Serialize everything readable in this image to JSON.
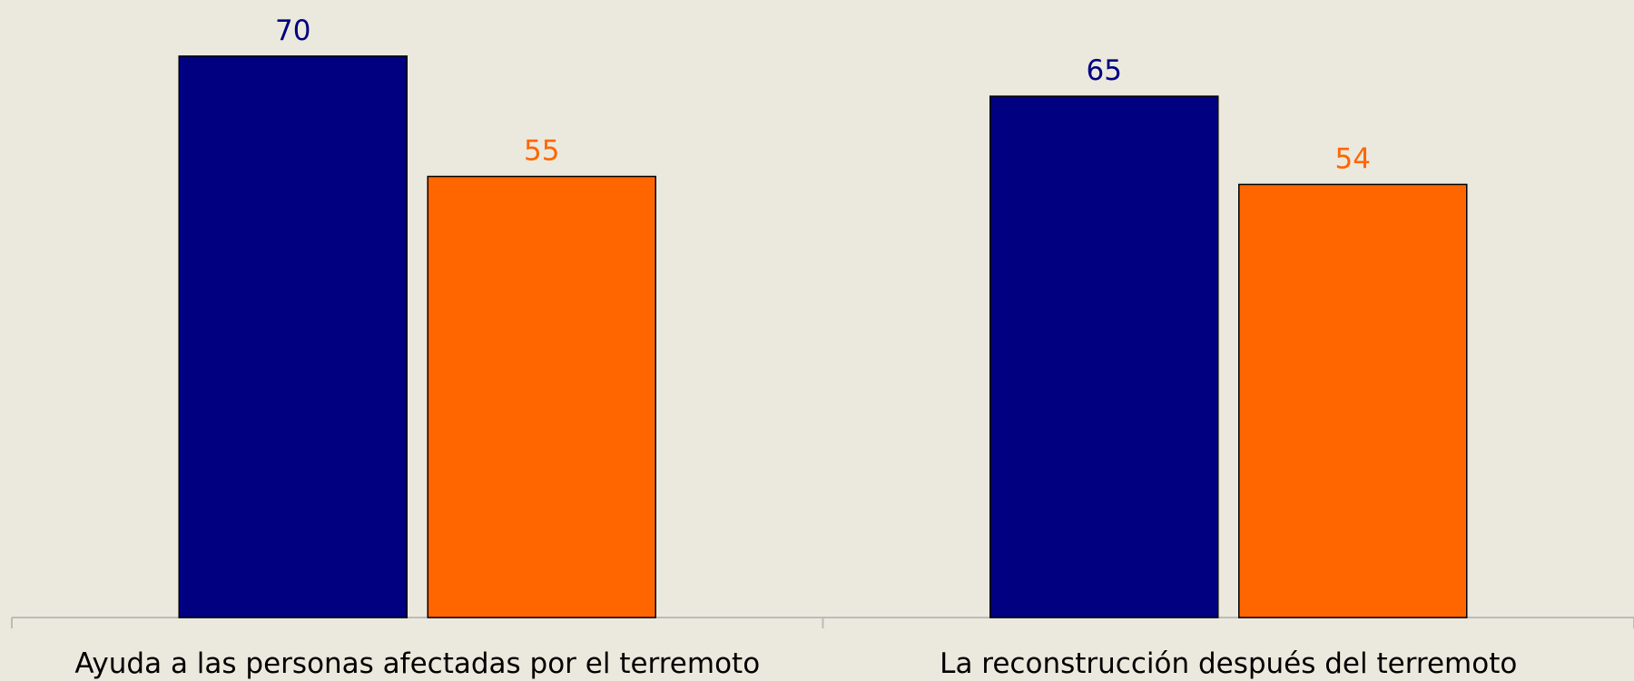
{
  "chart_data": {
    "type": "bar",
    "categories": [
      "Ayuda a las personas afectadas por el terremoto",
      "La reconstrucción después del terremoto"
    ],
    "series": [
      {
        "color": "#000080",
        "values": [
          70,
          65
        ]
      },
      {
        "color": "#ff6600",
        "values": [
          55,
          54
        ]
      }
    ],
    "ylim": [
      0,
      77
    ],
    "grid": false
  }
}
